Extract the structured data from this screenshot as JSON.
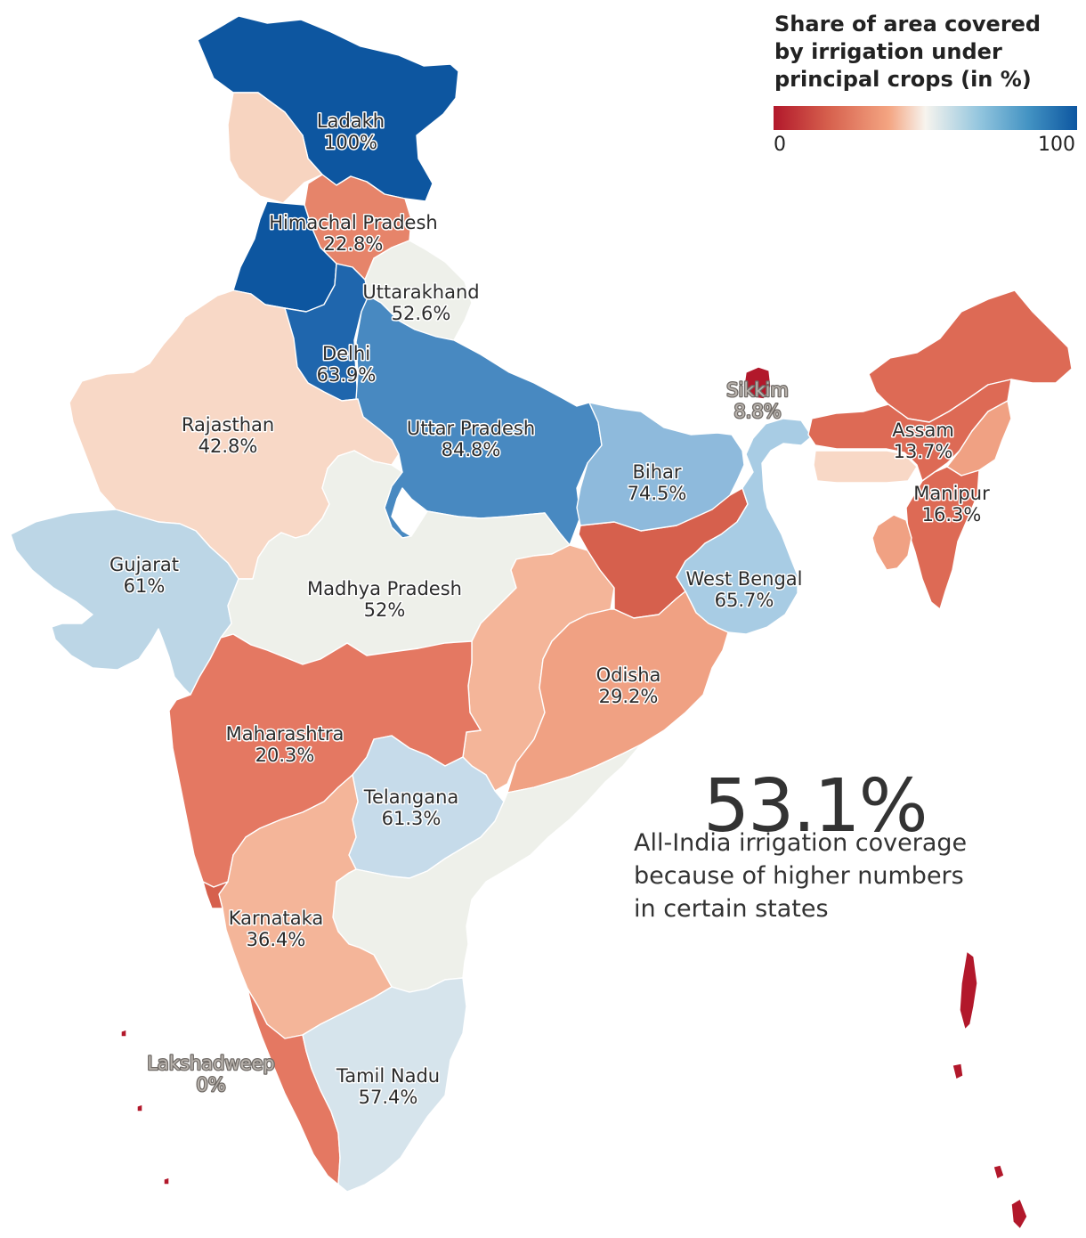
{
  "legend": {
    "title": "Share of area covered by irrigation under principal crops (in %)",
    "min_label": "0",
    "max_label": "100",
    "colors": [
      "#b2182b",
      "#d6604d",
      "#f4a582",
      "#f7f4ee",
      "#92c5de",
      "#4393c3",
      "#0d56a0"
    ]
  },
  "headline": {
    "value": "53.1%",
    "text": "All-India irrigation coverage because of higher numbers in certain states"
  },
  "labels": {
    "ladakh": {
      "name": "Ladakh",
      "value": "100%"
    },
    "himachal": {
      "name": "Himachal Pradesh",
      "value": "22.8%"
    },
    "uttarakhand": {
      "name": "Uttarakhand",
      "value": "52.6%"
    },
    "delhi": {
      "name": "Delhi",
      "value": "63.9%"
    },
    "rajasthan": {
      "name": "Rajasthan",
      "value": "42.8%"
    },
    "up": {
      "name": "Uttar Pradesh",
      "value": "84.8%"
    },
    "bihar": {
      "name": "Bihar",
      "value": "74.5%"
    },
    "sikkim": {
      "name": "Sikkim",
      "value": "8.8%"
    },
    "assam": {
      "name": "Assam",
      "value": "13.7%"
    },
    "manipur": {
      "name": "Manipur",
      "value": "16.3%"
    },
    "gujarat": {
      "name": "Gujarat",
      "value": "61%"
    },
    "mp": {
      "name": "Madhya Pradesh",
      "value": "52%"
    },
    "wb": {
      "name": "West Bengal",
      "value": "65.7%"
    },
    "odisha": {
      "name": "Odisha",
      "value": "29.2%"
    },
    "maharashtra": {
      "name": "Maharashtra",
      "value": "20.3%"
    },
    "telangana": {
      "name": "Telangana",
      "value": "61.3%"
    },
    "karnataka": {
      "name": "Karnataka",
      "value": "36.4%"
    },
    "lakshadweep": {
      "name": "Lakshadweep",
      "value": "0%"
    },
    "tamilnadu": {
      "name": "Tamil Nadu",
      "value": "57.4%"
    }
  },
  "fills": {
    "jk": "#0d56a0",
    "punjab": "#0d56a0",
    "hp_north": "#f7d4c0",
    "himachal": "#e6846a",
    "uttarakhand": "#eef0ea",
    "haryana": "#1f66ad",
    "up": "#4889c1",
    "rajasthan": "#f8d8c6",
    "gujarat": "#bcd6e6",
    "mp": "#eef0ea",
    "bihar": "#8ebadc",
    "jharkhand": "#d6604d",
    "wb": "#a8cce4",
    "sikkim": "#b2182b",
    "ne_red": "#dd6a55",
    "ne_light": "#f0a183",
    "meghalaya": "#f8d8c6",
    "chhattisgarh": "#f4b599",
    "odisha": "#f0a183",
    "maharashtra": "#e47862",
    "telangana": "#c6dbea",
    "ap": "#eef0ea",
    "karnataka": "#f4b599",
    "goa": "#d6604d",
    "kerala": "#e47862",
    "tamilnadu": "#d6e4ec",
    "islands": "#b2182b"
  }
}
